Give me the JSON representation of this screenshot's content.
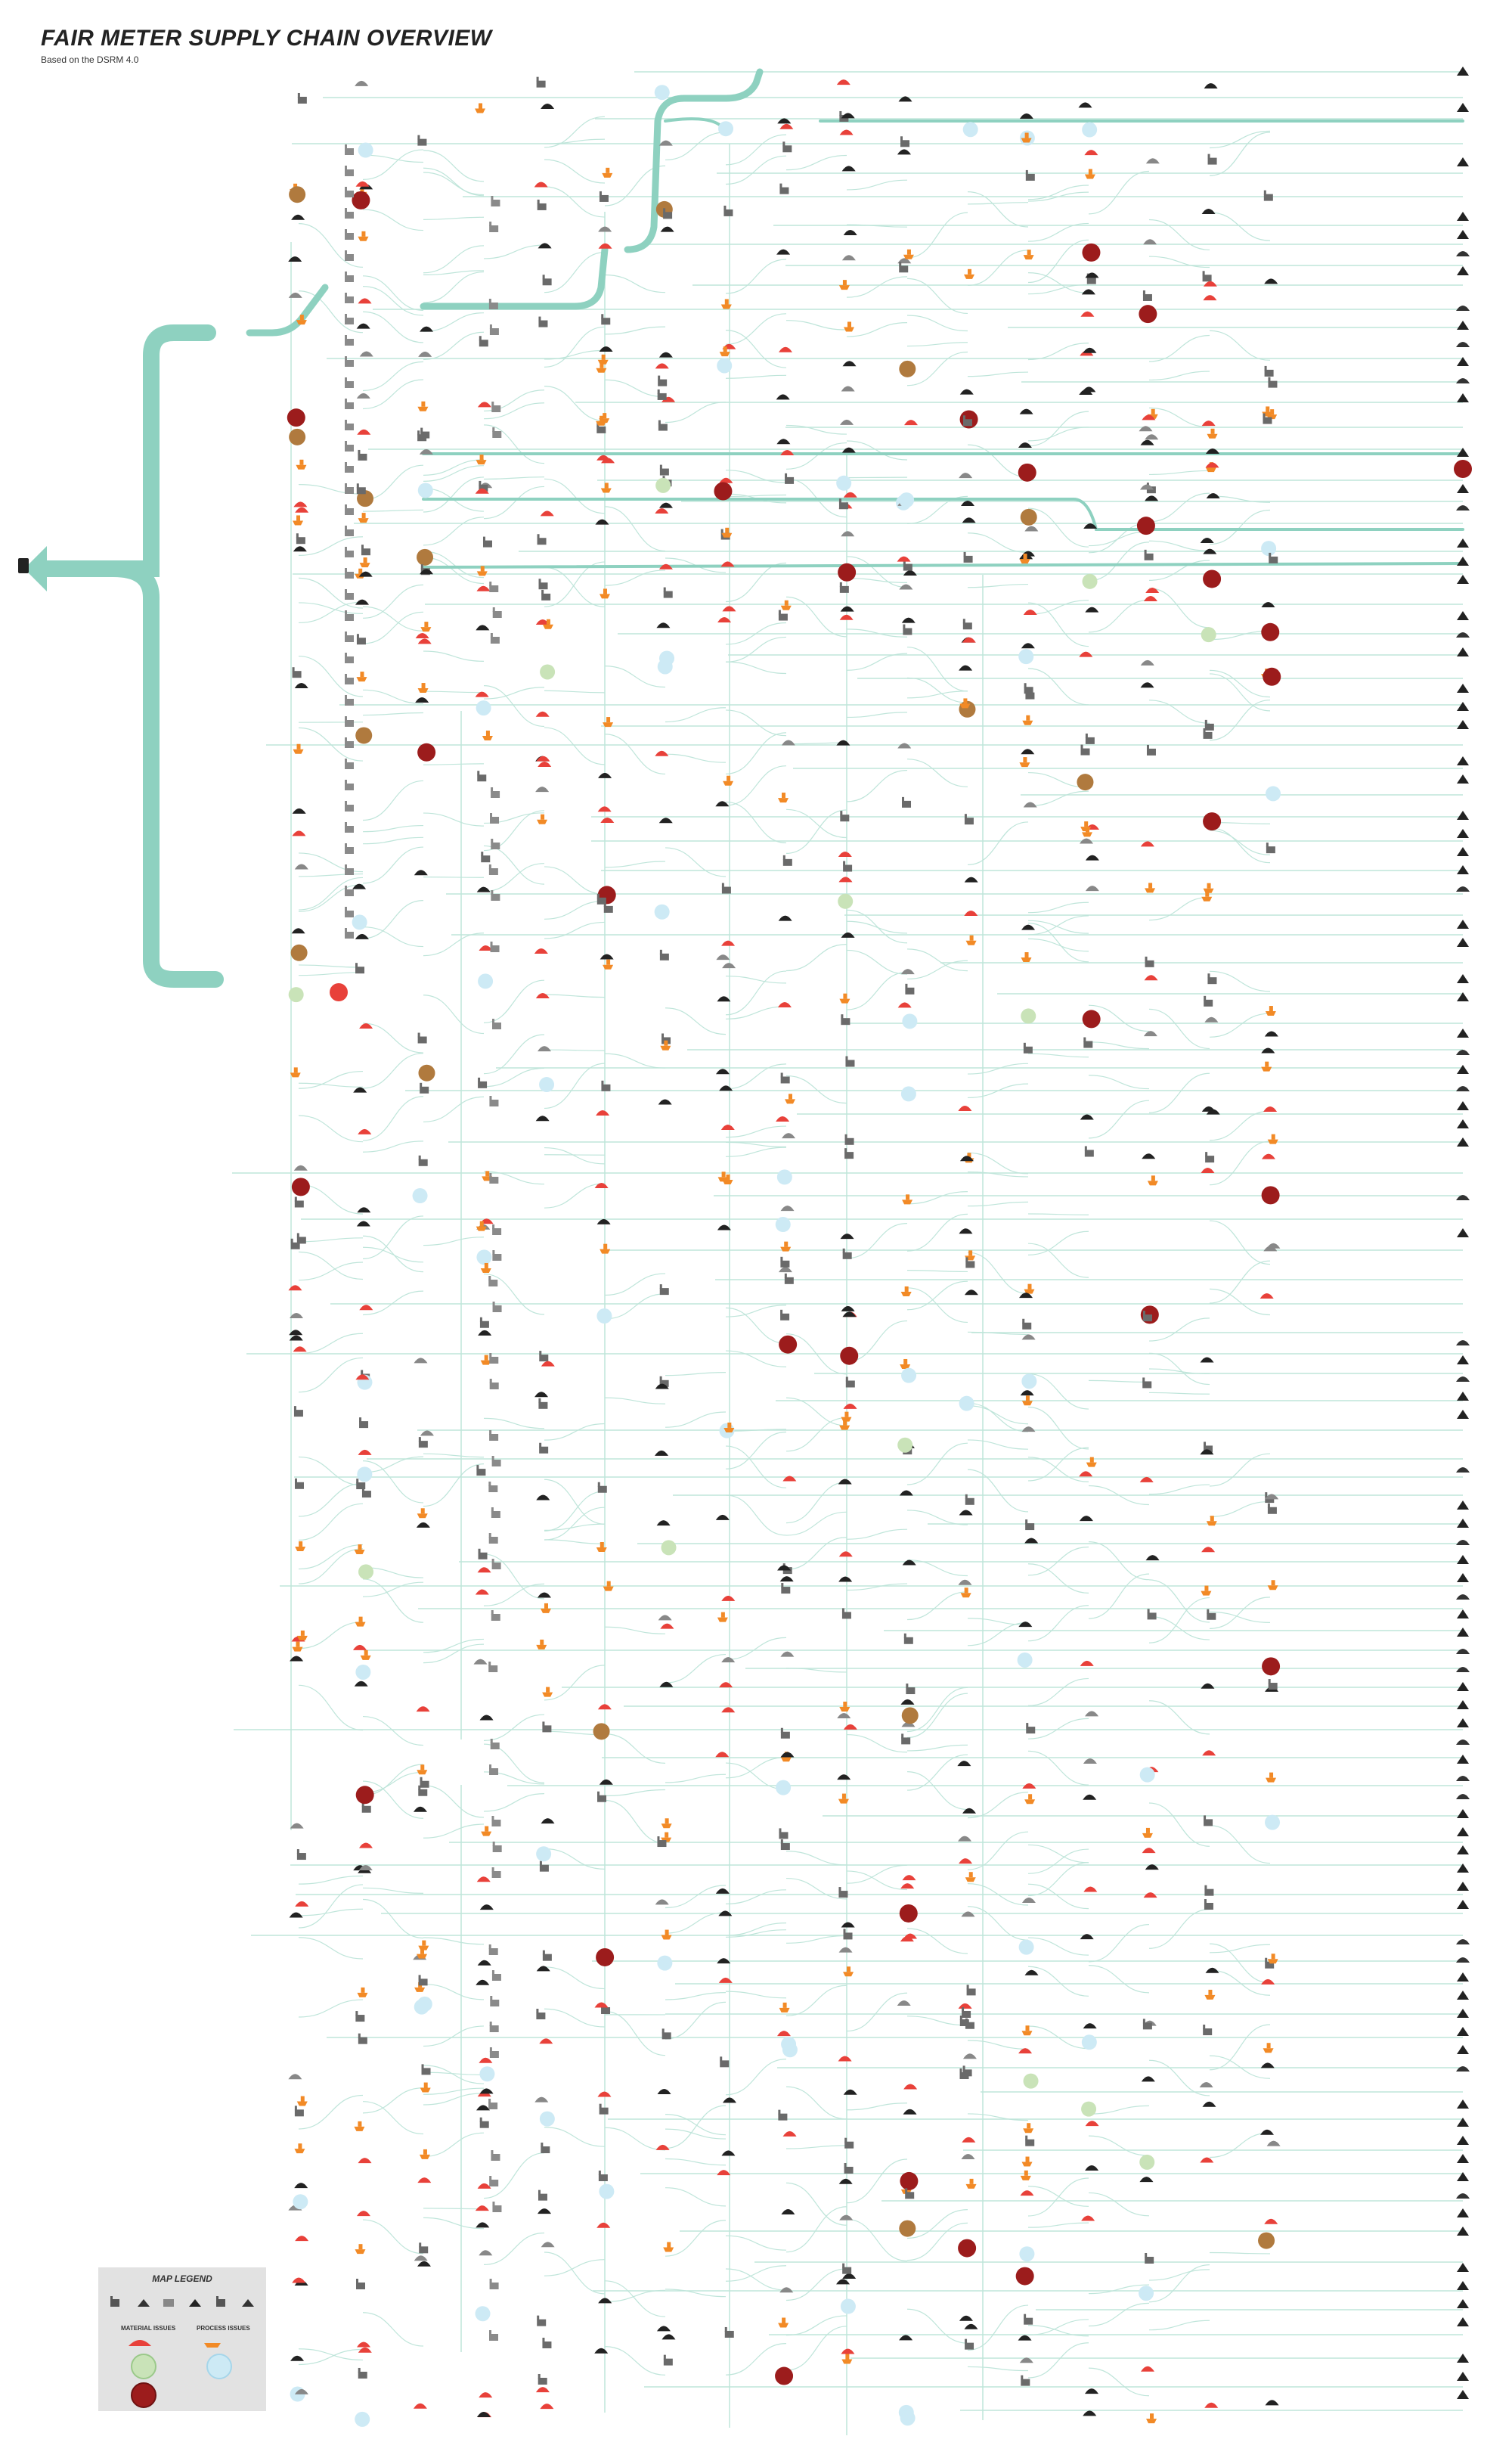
{
  "header": {
    "title": "FAIR METER SUPPLY CHAIN OVERVIEW",
    "subtitle": "Based on the DSRM 4.0"
  },
  "legend": {
    "title": "MAP LEGEND",
    "material_issues": "MATERIAL ISSUES",
    "process_issues": "PROCESS ISSUES"
  },
  "colors": {
    "flow": "#8ed1c0",
    "flow_thin": "#bfe5da",
    "issue_red": "#e8413a",
    "dark_red": "#9c1c1c",
    "transport_orange": "#f28a26",
    "process_blue": "#cdeaf5",
    "material_green": "#c9e3b8",
    "brown": "#b07a3e",
    "dark": "#222222",
    "grey": "#9a9a9a",
    "legend_bg": "#e2e2e2"
  },
  "icons": [
    "factory-icon",
    "mine-icon",
    "ship-icon",
    "ore-pile-icon",
    "warehouse-icon",
    "meter-icon"
  ]
}
